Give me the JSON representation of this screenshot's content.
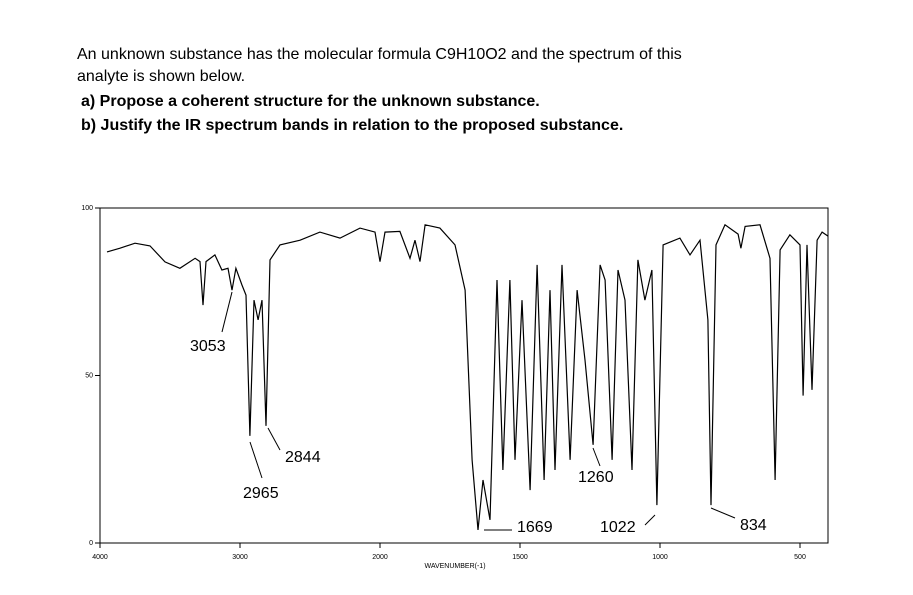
{
  "question": {
    "line1": "An unknown substance has the molecular formula C9H10O2 and the spectrum of this",
    "line2": "analyte is shown below.",
    "a": "a) Propose a coherent structure for the unknown substance.",
    "b": "b) Justify the IR spectrum bands in relation to the proposed substance."
  },
  "chart_data": {
    "type": "line",
    "xlabel": "WAVENUMBER(-1)",
    "color": "#000000",
    "xlim": [
      4000,
      400
    ],
    "ylim": [
      0,
      100
    ],
    "xticks": [
      4000,
      3000,
      2000,
      1500,
      1000,
      500
    ],
    "yticks": [
      0,
      50,
      100
    ],
    "annotations": [
      {
        "text": "3053"
      },
      {
        "text": "2965"
      },
      {
        "text": "2844"
      },
      {
        "text": "1669"
      },
      {
        "text": "1260"
      },
      {
        "text": "1022"
      },
      {
        "text": "834"
      }
    ],
    "x": [
      3950,
      3857,
      3750,
      3643,
      3536,
      3429,
      3321,
      3286,
      3264,
      3243,
      3179,
      3129,
      3086,
      3057,
      3029,
      2986,
      2957,
      2929,
      2900,
      2871,
      2843,
      2814,
      2786,
      2714,
      2571,
      2429,
      2286,
      2143,
      2036,
      2000,
      1982,
      1929,
      1893,
      1875,
      1857,
      1839,
      1786,
      1732,
      1696,
      1671,
      1650,
      1632,
      1607,
      1582,
      1561,
      1536,
      1518,
      1493,
      1464,
      1439,
      1414,
      1393,
      1375,
      1350,
      1321,
      1296,
      1268,
      1239,
      1214,
      1196,
      1171,
      1150,
      1125,
      1100,
      1079,
      1054,
      1029,
      1011,
      989,
      929,
      893,
      857,
      829,
      818,
      800,
      768,
      721,
      711,
      696,
      643,
      607,
      589,
      571,
      536,
      500,
      489,
      475,
      457,
      439,
      421,
      400
    ],
    "values": [
      86.9,
      88,
      89.5,
      88.7,
      83.9,
      82,
      85,
      84,
      71,
      84,
      86,
      81.5,
      82,
      75.5,
      82,
      77,
      74,
      32,
      72.5,
      66.6,
      72.5,
      35,
      84.5,
      89,
      90.4,
      92.8,
      91,
      94,
      92.8,
      84,
      92.8,
      93,
      85,
      90.4,
      84,
      95,
      94,
      89,
      75.5,
      24.8,
      3.9,
      18.8,
      6.9,
      78.5,
      21.8,
      78.5,
      24.8,
      72.5,
      15.8,
      83,
      18.8,
      75.5,
      21.8,
      83,
      24.8,
      75.5,
      54.6,
      29.3,
      83,
      78.5,
      24.8,
      81.5,
      72.5,
      21.8,
      84.5,
      72.5,
      81.5,
      11.3,
      89,
      91,
      86,
      90.4,
      66.6,
      11.3,
      89,
      95,
      92.2,
      88,
      94.5,
      95,
      85,
      18.8,
      87.5,
      92,
      89,
      44,
      89,
      45.7,
      90.4,
      92.8,
      91.6
    ]
  }
}
